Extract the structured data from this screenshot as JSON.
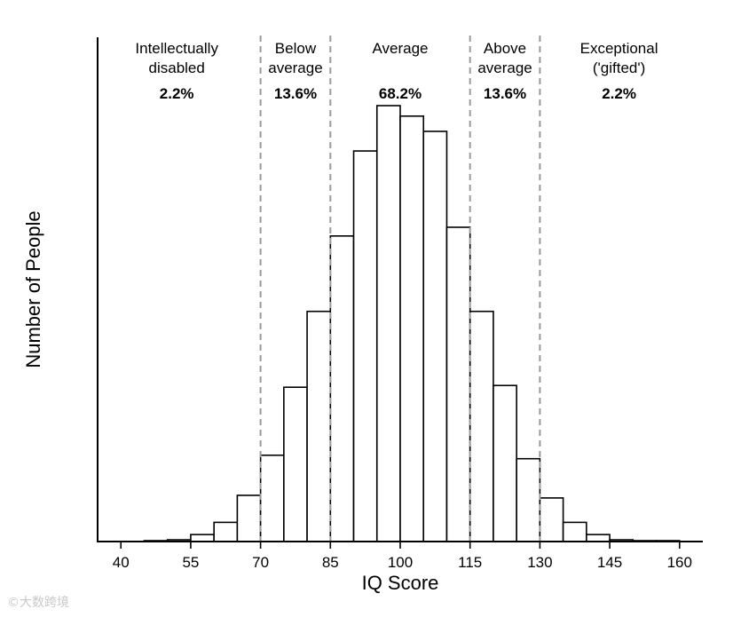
{
  "chart_data": {
    "type": "bar",
    "title": "",
    "xlabel": "IQ Score",
    "ylabel": "Number of People",
    "xlim": [
      35,
      165
    ],
    "ylim": [
      0,
      100
    ],
    "xticks": [
      40,
      55,
      70,
      85,
      100,
      115,
      130,
      145,
      160
    ],
    "bin_width": 5,
    "bins": [
      {
        "start": 45,
        "value": 0.2
      },
      {
        "start": 50,
        "value": 0.4
      },
      {
        "start": 55,
        "value": 1.6
      },
      {
        "start": 60,
        "value": 4.4
      },
      {
        "start": 65,
        "value": 10.6
      },
      {
        "start": 70,
        "value": 19.8
      },
      {
        "start": 75,
        "value": 35.4
      },
      {
        "start": 80,
        "value": 52.8
      },
      {
        "start": 85,
        "value": 70.1
      },
      {
        "start": 90,
        "value": 89.6
      },
      {
        "start": 95,
        "value": 100
      },
      {
        "start": 100,
        "value": 97.6
      },
      {
        "start": 105,
        "value": 94.1
      },
      {
        "start": 110,
        "value": 72.1
      },
      {
        "start": 115,
        "value": 52.8
      },
      {
        "start": 120,
        "value": 35.8
      },
      {
        "start": 125,
        "value": 19.0
      },
      {
        "start": 130,
        "value": 10.0
      },
      {
        "start": 135,
        "value": 4.4
      },
      {
        "start": 140,
        "value": 1.6
      },
      {
        "start": 145,
        "value": 0.4
      },
      {
        "start": 150,
        "value": 0.2
      },
      {
        "start": 155,
        "value": 0.2
      }
    ],
    "boundaries": [
      70,
      85,
      115,
      130
    ],
    "categories": [
      {
        "label_lines": [
          "Intellectually",
          "disabled"
        ],
        "percent": "2.2%",
        "center": 52
      },
      {
        "label_lines": [
          "Below",
          "average"
        ],
        "percent": "13.6%",
        "center": 77.5
      },
      {
        "label_lines": [
          "Average",
          ""
        ],
        "percent": "68.2%",
        "center": 100
      },
      {
        "label_lines": [
          "Above",
          "average"
        ],
        "percent": "13.6%",
        "center": 122.5
      },
      {
        "label_lines": [
          "Exceptional",
          "('gifted')"
        ],
        "percent": "2.2%",
        "center": 147
      }
    ],
    "colors": {
      "bar_fill": "#ffffff",
      "bar_stroke": "#000000",
      "boundary": "#999999"
    }
  },
  "watermark": "©大数跨境"
}
